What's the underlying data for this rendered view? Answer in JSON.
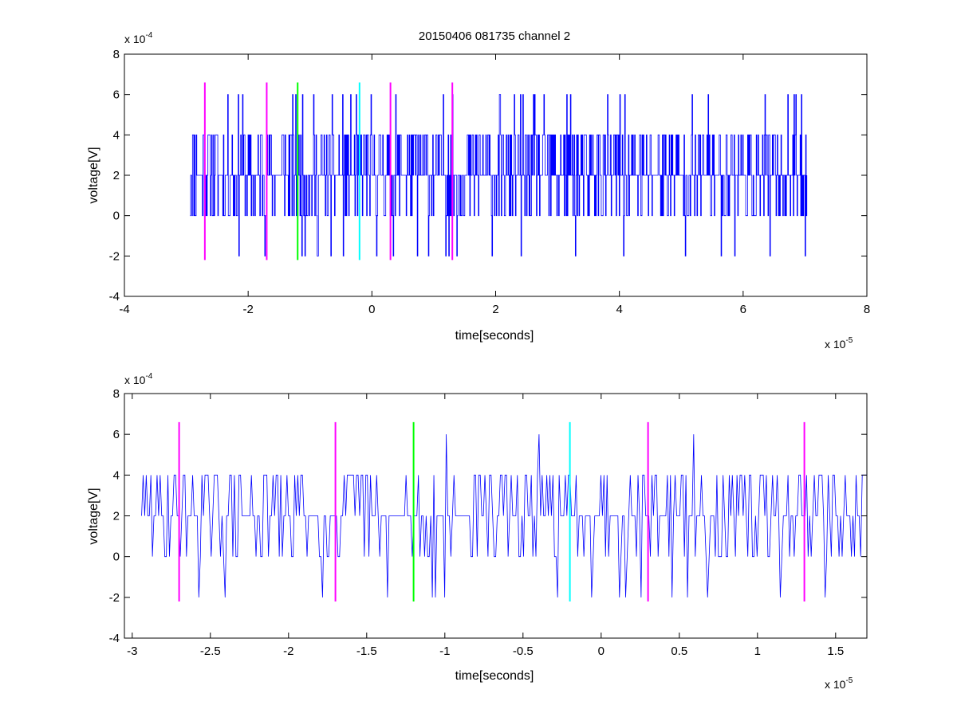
{
  "figure_title": "20150406 081735 channel 2",
  "chart_data": [
    {
      "type": "line",
      "title": "20150406 081735 channel 2",
      "xlabel": "time[seconds]",
      "ylabel": "voltage[V]",
      "x_exponent_label": "x 10",
      "x_exponent": "-5",
      "y_exponent_label": "x 10",
      "y_exponent": "-4",
      "xlim": [
        -4,
        8
      ],
      "ylim": [
        -4,
        8
      ],
      "xticks": [
        "-4",
        "-2",
        "0",
        "2",
        "4",
        "6",
        "8"
      ],
      "yticks": [
        "-4",
        "-2",
        "0",
        "2",
        "4",
        "6",
        "8"
      ],
      "grid": false,
      "series": [
        {
          "color": "#0000ff",
          "style": "step",
          "x_range": [
            -2.94,
            7.03
          ],
          "seed": 11,
          "levels": [
            -2,
            0,
            2,
            4,
            6
          ],
          "level_probabilities": [
            0.03,
            0.22,
            0.45,
            0.27,
            0.03
          ],
          "n_points": 1000
        }
      ],
      "vertical_markers": [
        {
          "x": -2.7,
          "y_range": [
            -2.2,
            6.6
          ],
          "color": "#ff00ff"
        },
        {
          "x": -1.7,
          "y_range": [
            -2.2,
            6.6
          ],
          "color": "#ff00ff"
        },
        {
          "x": -1.2,
          "y_range": [
            -2.2,
            6.6
          ],
          "color": "#00ff00"
        },
        {
          "x": -0.2,
          "y_range": [
            -2.2,
            6.6
          ],
          "color": "#00ffff"
        },
        {
          "x": 0.3,
          "y_range": [
            -2.2,
            6.6
          ],
          "color": "#ff00ff"
        },
        {
          "x": 1.3,
          "y_range": [
            -2.2,
            6.6
          ],
          "color": "#ff00ff"
        }
      ]
    },
    {
      "type": "line",
      "title": "",
      "xlabel": "time[seconds]",
      "ylabel": "voltage[V]",
      "x_exponent_label": "x 10",
      "x_exponent": "-5",
      "y_exponent_label": "x 10",
      "y_exponent": "-4",
      "xlim": [
        -3.05,
        1.7
      ],
      "ylim": [
        -4,
        8
      ],
      "xticks": [
        "-3",
        "-2.5",
        "-2",
        "-1.5",
        "-1",
        "-0.5",
        "0",
        "0.5",
        "1",
        "1.5"
      ],
      "xtick_values": [
        -3,
        -2.5,
        -2,
        -1.5,
        -1,
        -0.5,
        0,
        0.5,
        1,
        1.5
      ],
      "yticks": [
        "-4",
        "-2",
        "0",
        "2",
        "4",
        "6",
        "8"
      ],
      "grid": false,
      "series": [
        {
          "color": "#0000ff",
          "style": "line",
          "x_range": [
            -2.94,
            1.7
          ],
          "seed": 29,
          "levels": [
            -2,
            0,
            2,
            4,
            6
          ],
          "level_probabilities": [
            0.03,
            0.2,
            0.5,
            0.25,
            0.02
          ],
          "n_points": 470
        }
      ],
      "vertical_markers": [
        {
          "x": -2.7,
          "y_range": [
            -2.2,
            6.6
          ],
          "color": "#ff00ff"
        },
        {
          "x": -1.7,
          "y_range": [
            -2.2,
            6.6
          ],
          "color": "#ff00ff"
        },
        {
          "x": -1.2,
          "y_range": [
            -2.2,
            6.6
          ],
          "color": "#00ff00"
        },
        {
          "x": -0.2,
          "y_range": [
            -2.2,
            6.6
          ],
          "color": "#00ffff"
        },
        {
          "x": 0.3,
          "y_range": [
            -2.2,
            6.6
          ],
          "color": "#ff00ff"
        },
        {
          "x": 1.3,
          "y_range": [
            -2.2,
            6.6
          ],
          "color": "#ff00ff"
        }
      ]
    }
  ]
}
